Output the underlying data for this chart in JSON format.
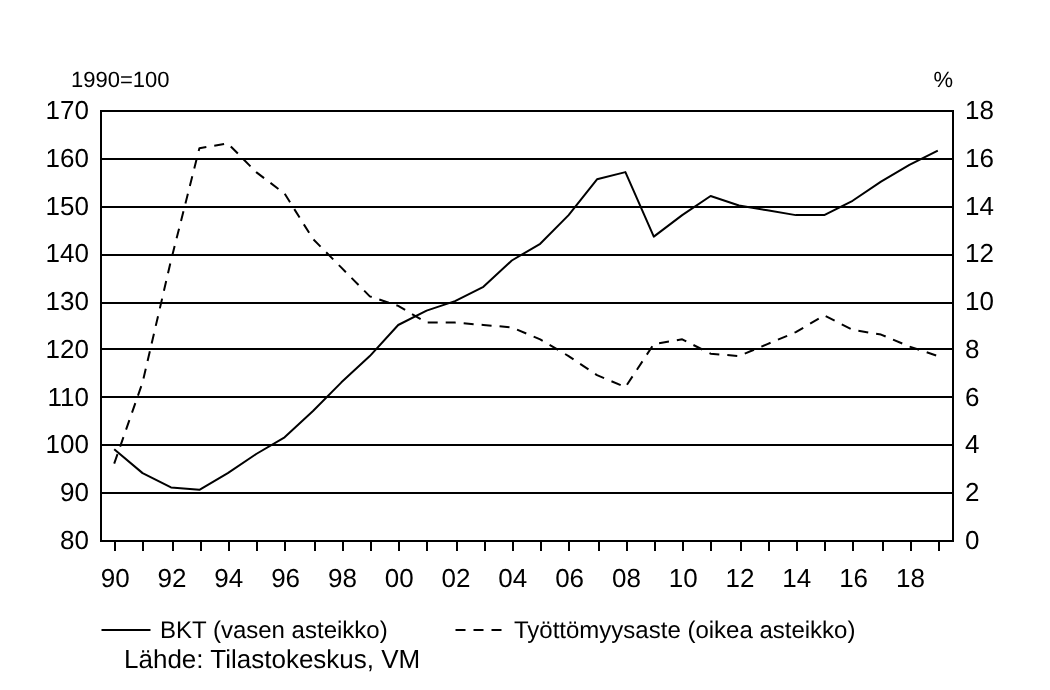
{
  "chart_data": {
    "type": "line",
    "ylabel": "1990=100",
    "y2label": "%",
    "annotations": [
      "Lähde: Tilastokeskus, VM"
    ],
    "x": [
      1990,
      1991,
      1992,
      1993,
      1994,
      1995,
      1996,
      1997,
      1998,
      1999,
      2000,
      2001,
      2002,
      2003,
      2004,
      2005,
      2006,
      2007,
      2008,
      2009,
      2010,
      2011,
      2012,
      2013,
      2014,
      2015,
      2016,
      2017,
      2018,
      2019
    ],
    "series": [
      {
        "name": "BKT (vasen asteikko)",
        "color": "#000000",
        "line_style": "solid",
        "values": [
          99,
          94,
          91,
          90.5,
          94,
          98,
          101.5,
          107,
          113,
          118.5,
          125,
          128,
          130,
          133,
          138.5,
          142,
          148,
          155.5,
          157,
          143.5,
          148,
          152,
          150,
          149,
          148,
          148,
          151,
          155,
          158.5,
          161.5
        ]
      },
      {
        "name": "Työttömyysaste (oikea asteikko)",
        "color": "#000000",
        "line_style": "dashed",
        "axis": "y2",
        "values": [
          3.2,
          6.6,
          11.7,
          16.4,
          16.6,
          15.4,
          14.5,
          12.6,
          11.4,
          10.2,
          9.8,
          9.1,
          9.1,
          9.0,
          8.9,
          8.4,
          7.7,
          6.9,
          6.4,
          8.2,
          8.4,
          7.8,
          7.7,
          8.2,
          8.7,
          9.4,
          8.8,
          8.6,
          8.1,
          7.7
        ]
      }
    ],
    "xlim": [
      1989.5,
      2019.5
    ],
    "xticks": [
      {
        "value": 1990,
        "label": "90"
      },
      {
        "value": 1991,
        "label": null
      },
      {
        "value": 1992,
        "label": "92"
      },
      {
        "value": 1993,
        "label": null
      },
      {
        "value": 1994,
        "label": "94"
      },
      {
        "value": 1995,
        "label": null
      },
      {
        "value": 1996,
        "label": "96"
      },
      {
        "value": 1997,
        "label": null
      },
      {
        "value": 1998,
        "label": "98"
      },
      {
        "value": 1999,
        "label": null
      },
      {
        "value": 2000,
        "label": "00"
      },
      {
        "value": 2001,
        "label": null
      },
      {
        "value": 2002,
        "label": "02"
      },
      {
        "value": 2003,
        "label": null
      },
      {
        "value": 2004,
        "label": "04"
      },
      {
        "value": 2005,
        "label": null
      },
      {
        "value": 2006,
        "label": "06"
      },
      {
        "value": 2007,
        "label": null
      },
      {
        "value": 2008,
        "label": "08"
      },
      {
        "value": 2009,
        "label": null
      },
      {
        "value": 2010,
        "label": "10"
      },
      {
        "value": 2011,
        "label": null
      },
      {
        "value": 2012,
        "label": "12"
      },
      {
        "value": 2013,
        "label": null
      },
      {
        "value": 2014,
        "label": "14"
      },
      {
        "value": 2015,
        "label": null
      },
      {
        "value": 2016,
        "label": "16"
      },
      {
        "value": 2017,
        "label": null
      },
      {
        "value": 2018,
        "label": "18"
      },
      {
        "value": 2019,
        "label": null
      }
    ],
    "ylim": [
      80,
      170
    ],
    "yticks": [
      80,
      90,
      100,
      110,
      120,
      130,
      140,
      150,
      160,
      170
    ],
    "y2lim": [
      0,
      18
    ],
    "y2ticks": [
      0,
      2,
      4,
      6,
      8,
      10,
      12,
      14,
      16,
      18
    ],
    "grid": "y",
    "legend": "bottom",
    "marker": "none"
  }
}
